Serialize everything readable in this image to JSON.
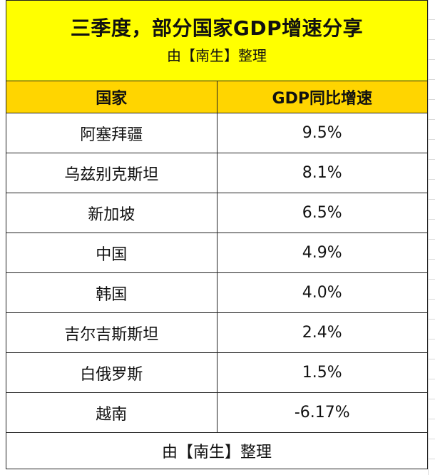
{
  "title": {
    "main": "三季度，部分国家GDP增速分享",
    "sub": "由【南生】整理"
  },
  "headers": {
    "country": "国家",
    "growth": "GDP同比增速"
  },
  "rows": [
    {
      "country": "阿塞拜疆",
      "growth": "9.5%"
    },
    {
      "country": "乌兹别克斯坦",
      "growth": "8.1%"
    },
    {
      "country": "新加坡",
      "growth": "6.5%"
    },
    {
      "country": "中国",
      "growth": "4.9%"
    },
    {
      "country": "韩国",
      "growth": "4.0%"
    },
    {
      "country": "吉尔吉斯斯坦",
      "growth": "2.4%"
    },
    {
      "country": "白俄罗斯",
      "growth": "1.5%"
    },
    {
      "country": "越南",
      "growth": "-6.17%"
    }
  ],
  "footer": "由【南生】整理",
  "colors": {
    "title_bg": "#ffff00",
    "header_bg": "#ffd500",
    "border": "#222222"
  }
}
